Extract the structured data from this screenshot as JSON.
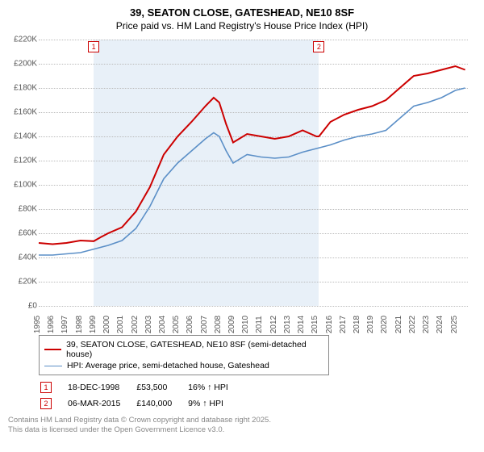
{
  "header": {
    "address": "39, SEATON CLOSE, GATESHEAD, NE10 8SF",
    "subtitle": "Price paid vs. HM Land Registry's House Price Index (HPI)"
  },
  "chart": {
    "type": "line",
    "background_color": "#ffffff",
    "grid_color": "#bbbbbb",
    "shade_color": "#d6e4f2",
    "x_range": [
      1995,
      2025.9
    ],
    "x_ticks": [
      1995,
      1996,
      1997,
      1998,
      1999,
      2000,
      2001,
      2002,
      2003,
      2004,
      2005,
      2006,
      2007,
      2008,
      2009,
      2010,
      2011,
      2012,
      2013,
      2014,
      2015,
      2016,
      2017,
      2018,
      2019,
      2020,
      2021,
      2022,
      2023,
      2024,
      2025
    ],
    "ylim": [
      0,
      220000
    ],
    "y_ticks": [
      0,
      20000,
      40000,
      60000,
      80000,
      100000,
      120000,
      140000,
      160000,
      180000,
      200000,
      220000
    ],
    "y_tick_labels": [
      "£0",
      "£20K",
      "£40K",
      "£60K",
      "£80K",
      "£100K",
      "£120K",
      "£140K",
      "£160K",
      "£180K",
      "£200K",
      "£220K"
    ],
    "shade_span": [
      1998.96,
      2015.18
    ],
    "series": [
      {
        "name": "price_paid",
        "label": "39, SEATON CLOSE, GATESHEAD, NE10 8SF (semi-detached house)",
        "color": "#cc0000",
        "width": 2,
        "points": [
          [
            1995,
            52000
          ],
          [
            1996,
            51000
          ],
          [
            1997,
            52000
          ],
          [
            1998,
            54000
          ],
          [
            1998.96,
            53500
          ],
          [
            1999.5,
            57000
          ],
          [
            2000,
            60000
          ],
          [
            2001,
            65000
          ],
          [
            2002,
            78000
          ],
          [
            2003,
            98000
          ],
          [
            2004,
            125000
          ],
          [
            2005,
            140000
          ],
          [
            2006,
            152000
          ],
          [
            2007,
            165000
          ],
          [
            2007.6,
            172000
          ],
          [
            2008,
            168000
          ],
          [
            2008.5,
            150000
          ],
          [
            2009,
            135000
          ],
          [
            2010,
            142000
          ],
          [
            2011,
            140000
          ],
          [
            2012,
            138000
          ],
          [
            2013,
            140000
          ],
          [
            2014,
            145000
          ],
          [
            2015,
            140000
          ],
          [
            2015.18,
            140000
          ],
          [
            2016,
            152000
          ],
          [
            2017,
            158000
          ],
          [
            2018,
            162000
          ],
          [
            2019,
            165000
          ],
          [
            2020,
            170000
          ],
          [
            2021,
            180000
          ],
          [
            2022,
            190000
          ],
          [
            2023,
            192000
          ],
          [
            2024,
            195000
          ],
          [
            2025,
            198000
          ],
          [
            2025.7,
            195000
          ]
        ]
      },
      {
        "name": "hpi",
        "label": "HPI: Average price, semi-detached house, Gateshead",
        "color": "#5b8fc7",
        "width": 1.6,
        "points": [
          [
            1995,
            42000
          ],
          [
            1996,
            42000
          ],
          [
            1997,
            43000
          ],
          [
            1998,
            44000
          ],
          [
            1999,
            47000
          ],
          [
            2000,
            50000
          ],
          [
            2001,
            54000
          ],
          [
            2002,
            64000
          ],
          [
            2003,
            82000
          ],
          [
            2004,
            105000
          ],
          [
            2005,
            118000
          ],
          [
            2006,
            128000
          ],
          [
            2007,
            138000
          ],
          [
            2007.6,
            143000
          ],
          [
            2008,
            140000
          ],
          [
            2008.5,
            128000
          ],
          [
            2009,
            118000
          ],
          [
            2010,
            125000
          ],
          [
            2011,
            123000
          ],
          [
            2012,
            122000
          ],
          [
            2013,
            123000
          ],
          [
            2014,
            127000
          ],
          [
            2015,
            130000
          ],
          [
            2016,
            133000
          ],
          [
            2017,
            137000
          ],
          [
            2018,
            140000
          ],
          [
            2019,
            142000
          ],
          [
            2020,
            145000
          ],
          [
            2021,
            155000
          ],
          [
            2022,
            165000
          ],
          [
            2023,
            168000
          ],
          [
            2024,
            172000
          ],
          [
            2025,
            178000
          ],
          [
            2025.7,
            180000
          ]
        ]
      }
    ],
    "markers": [
      {
        "n": "1",
        "x": 1998.96,
        "y_top": true,
        "color": "#cc0000",
        "date": "18-DEC-1998",
        "price": "£53,500",
        "delta": "16% ↑ HPI"
      },
      {
        "n": "2",
        "x": 2015.18,
        "y_top": true,
        "color": "#cc0000",
        "date": "06-MAR-2015",
        "price": "£140,000",
        "delta": "9% ↑ HPI"
      }
    ]
  },
  "legend": {
    "row1_label": "39, SEATON CLOSE, GATESHEAD, NE10 8SF (semi-detached house)",
    "row2_label": "HPI: Average price, semi-detached house, Gateshead"
  },
  "footer": {
    "line1": "Contains HM Land Registry data © Crown copyright and database right 2025.",
    "line2": "This data is licensed under the Open Government Licence v3.0."
  },
  "label_fontsize": 10
}
